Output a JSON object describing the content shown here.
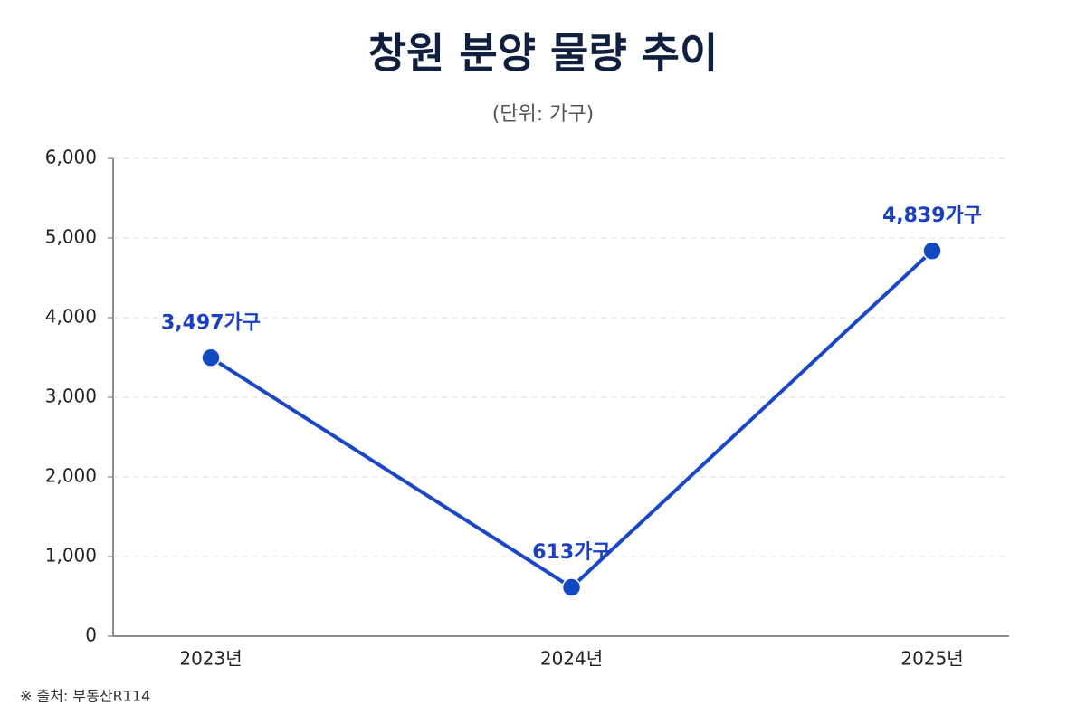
{
  "chart_data": {
    "type": "line",
    "title": "창원 분양 물량 추이",
    "subtitle": "(단위: 가구)",
    "source": "※ 출처: 부동산R114",
    "categories": [
      "2023년",
      "2024년",
      "2025년"
    ],
    "values": [
      3497,
      613,
      4839
    ],
    "value_labels": [
      "3,497가구",
      "613가구",
      "4,839가구"
    ],
    "color": "#1a47c8",
    "ylim": [
      0,
      6000
    ],
    "yticks": [
      0,
      {
        "value": 1000,
        "label": "1,000"
      },
      {
        "value": 2000,
        "label": "2,000"
      },
      {
        "value": 3000,
        "label": "3,000"
      },
      {
        "value": 4000,
        "label": "4,000"
      },
      {
        "value": 5000,
        "label": "5,000"
      },
      {
        "value": 6000,
        "label": "6,000"
      }
    ],
    "grid": true
  }
}
